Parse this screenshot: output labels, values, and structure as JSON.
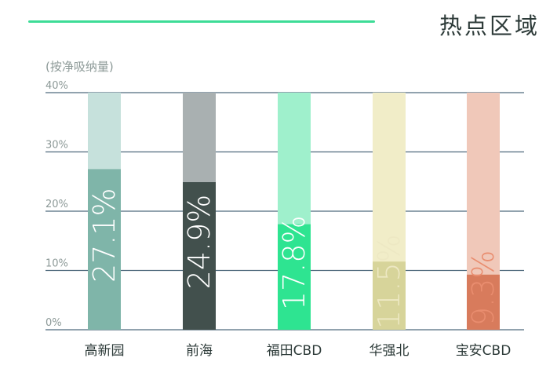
{
  "header": {
    "title": "热点区域",
    "subtitle": "(按净吸纳量)"
  },
  "colors": {
    "accent_line": "#3ddc97",
    "grid": "#4f6a7d",
    "tick_text": "#8c9997",
    "category_text": "#2c3a38"
  },
  "chart_data": {
    "type": "bar",
    "title": "热点区域",
    "subtitle": "(按净吸纳量)",
    "xlabel": "",
    "ylabel": "",
    "ylim": [
      0,
      40
    ],
    "yticks": [
      0,
      10,
      20,
      30,
      40
    ],
    "ytick_labels": [
      "0%",
      "10%",
      "20%",
      "30%",
      "40%"
    ],
    "categories": [
      "高新园",
      "前海",
      "福田CBD",
      "华强北",
      "宝安CBD"
    ],
    "values": [
      27.1,
      24.9,
      17.8,
      11.5,
      9.3
    ],
    "value_labels": [
      "27.1%",
      "24.9%",
      "17.8%",
      "11.5%",
      "9.3%"
    ],
    "background_track_max": 40,
    "bar_colors": [
      "#7fb5a9",
      "#42504d",
      "#2ee491",
      "#d7d49a",
      "#d87b5c"
    ],
    "track_colors": [
      "#c6e1dc",
      "#a9b0b1",
      "#9ff0cc",
      "#f1edc8",
      "#f0c8b9"
    ],
    "label_colors": [
      "#ffffff",
      "#ffffff",
      "#ffffff",
      "#ede8c3",
      "#e98d6f"
    ],
    "grid": true,
    "legend": "none"
  }
}
